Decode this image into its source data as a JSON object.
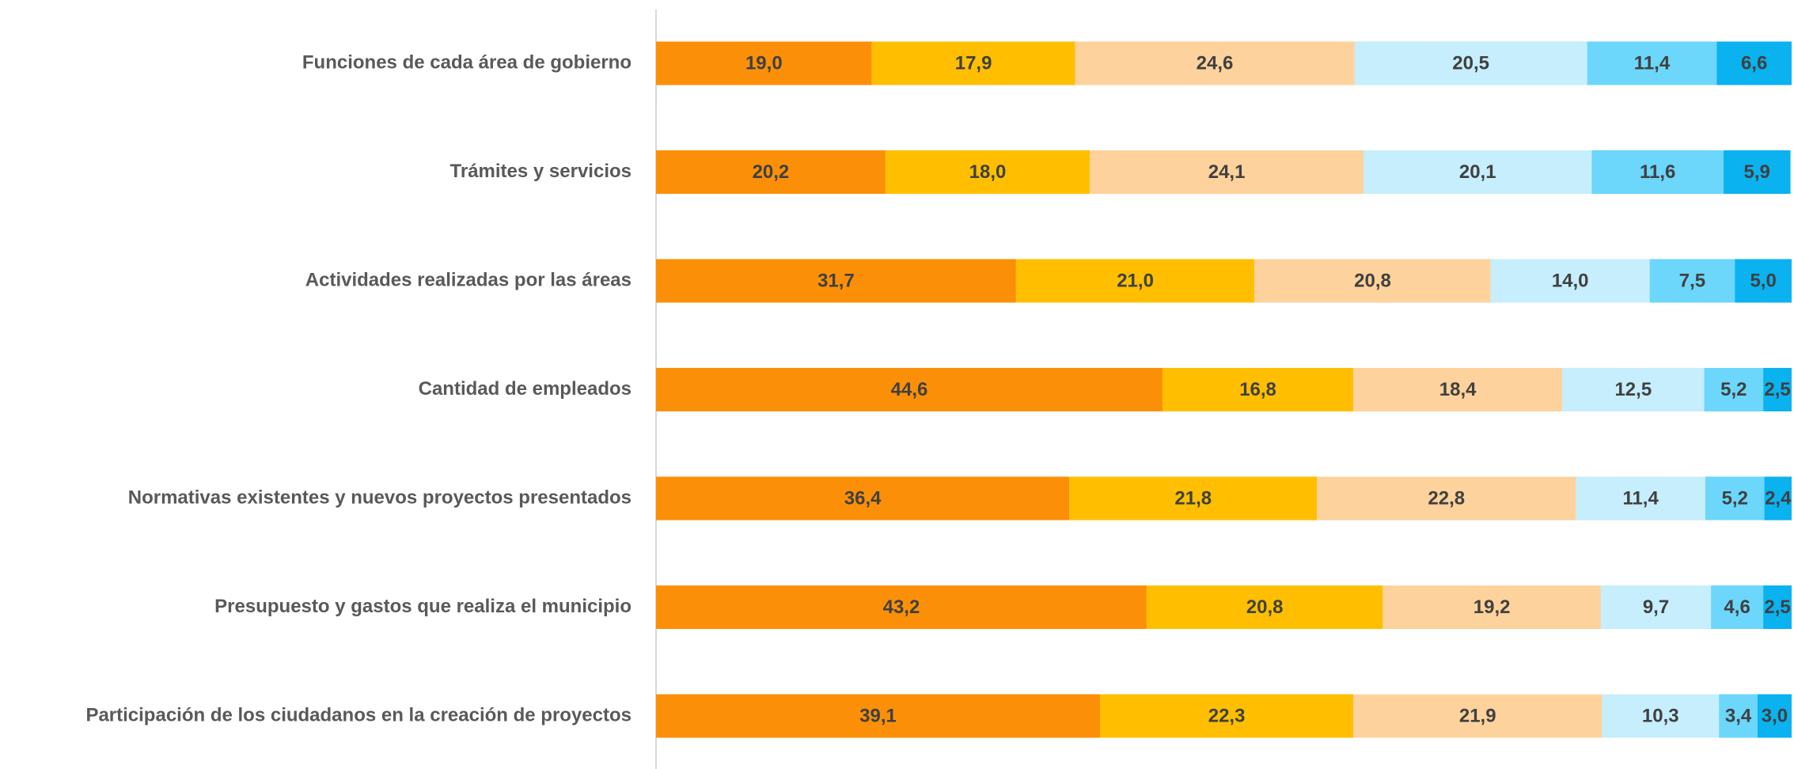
{
  "chart_data": {
    "type": "stacked-bar-horizontal",
    "categories": [
      "Funciones de cada área de gobierno",
      "Trámites y servicios",
      "Actividades realizadas por las áreas",
      "Cantidad de empleados",
      "Normativas existentes y nuevos proyectos presentados",
      "Presupuesto y gastos que realiza el municipio",
      "Participación de los ciudadanos en la creación de proyectos"
    ],
    "xlim": [
      0,
      100
    ],
    "series": [
      {
        "color": "#fb9008",
        "values": [
          19.0,
          20.2,
          31.7,
          44.6,
          36.4,
          43.2,
          39.1
        ],
        "value_labels": [
          "19,0",
          "20,2",
          "31,7",
          "44,6",
          "36,4",
          "43,2",
          "39,1"
        ]
      },
      {
        "color": "#ffbf00",
        "values": [
          17.9,
          18.0,
          21.0,
          16.8,
          21.8,
          20.8,
          22.3
        ],
        "value_labels": [
          "17,9",
          "18,0",
          "21,0",
          "16,8",
          "21,8",
          "20,8",
          "22,3"
        ]
      },
      {
        "color": "#fdd29c",
        "values": [
          24.6,
          24.1,
          20.8,
          18.4,
          22.8,
          19.2,
          21.9
        ],
        "value_labels": [
          "24,6",
          "24,1",
          "20,8",
          "18,4",
          "22,8",
          "19,2",
          "21,9"
        ]
      },
      {
        "color": "#c6eefc",
        "values": [
          20.5,
          20.1,
          14.0,
          12.5,
          11.4,
          9.7,
          10.3
        ],
        "value_labels": [
          "20,5",
          "20,1",
          "14,0",
          "12,5",
          "11,4",
          "9,7",
          "10,3"
        ]
      },
      {
        "color": "#6cd6fb",
        "values": [
          11.4,
          11.6,
          7.5,
          5.2,
          5.2,
          4.6,
          3.4
        ],
        "value_labels": [
          "11,4",
          "11,6",
          "7,5",
          "5,2",
          "5,2",
          "4,6",
          "3,4"
        ]
      },
      {
        "color": "#0ab2ef",
        "values": [
          6.6,
          5.9,
          5.0,
          2.5,
          2.4,
          2.5,
          3.0
        ],
        "value_labels": [
          "6,6",
          "5,9",
          "5,0",
          "2,5",
          "2,4",
          "2,5",
          "3,0"
        ]
      }
    ]
  }
}
